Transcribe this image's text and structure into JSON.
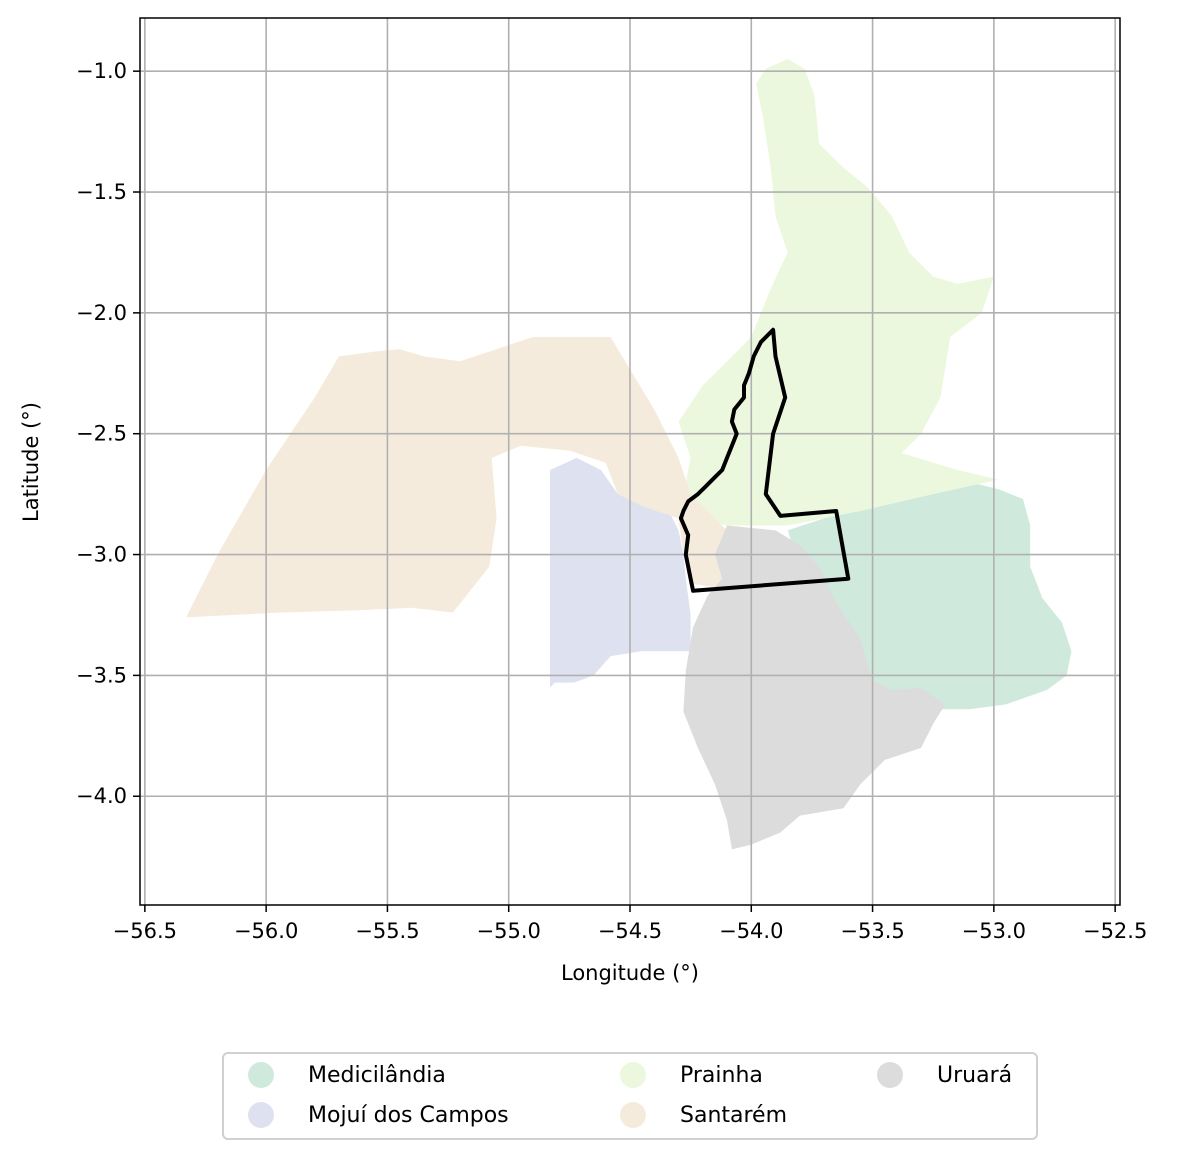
{
  "chart_data": {
    "type": "map",
    "title": "",
    "xlabel": "Longitude (°)",
    "ylabel": "Latitude (°)",
    "xlim": [
      -56.52,
      -52.48
    ],
    "ylim": [
      -4.45,
      -0.78
    ],
    "grid": true,
    "xticks": [
      -56.5,
      -56.0,
      -55.5,
      -55.0,
      -54.5,
      -54.0,
      -53.5,
      -53.0,
      -52.5
    ],
    "xtick_labels": [
      "−56.5",
      "−56.0",
      "−55.5",
      "−55.0",
      "−54.5",
      "−54.0",
      "−53.5",
      "−53.0",
      "−52.5"
    ],
    "yticks": [
      -1.0,
      -1.5,
      -2.0,
      -2.5,
      -3.0,
      -3.5,
      -4.0
    ],
    "ytick_labels": [
      "−1.0",
      "−1.5",
      "−2.0",
      "−2.5",
      "−3.0",
      "−3.5",
      "−4.0"
    ],
    "legend_position": "bottom-center, below plot",
    "regions": [
      {
        "name": "Medicilândia",
        "color": "#cfeadd",
        "polygon": [
          [
            -53.85,
            -2.9
          ],
          [
            -53.55,
            -2.8
          ],
          [
            -53.25,
            -2.75
          ],
          [
            -53.1,
            -2.7
          ],
          [
            -52.98,
            -2.73
          ],
          [
            -52.88,
            -2.77
          ],
          [
            -52.85,
            -2.88
          ],
          [
            -52.85,
            -3.05
          ],
          [
            -52.8,
            -3.18
          ],
          [
            -52.72,
            -3.28
          ],
          [
            -52.68,
            -3.4
          ],
          [
            -52.7,
            -3.5
          ],
          [
            -52.78,
            -3.56
          ],
          [
            -52.95,
            -3.62
          ],
          [
            -53.1,
            -3.64
          ],
          [
            -53.25,
            -3.64
          ],
          [
            -53.35,
            -3.62
          ],
          [
            -53.45,
            -3.56
          ],
          [
            -53.55,
            -3.52
          ],
          [
            -53.62,
            -3.44
          ],
          [
            -53.7,
            -3.35
          ],
          [
            -53.75,
            -3.18
          ],
          [
            -53.8,
            -3.05
          ]
        ]
      },
      {
        "name": "Mojuí dos Campos",
        "color": "#dee2f0",
        "polygon": [
          [
            -54.83,
            -2.65
          ],
          [
            -54.72,
            -2.6
          ],
          [
            -54.62,
            -2.65
          ],
          [
            -54.55,
            -2.75
          ],
          [
            -54.45,
            -2.78
          ],
          [
            -54.35,
            -2.8
          ],
          [
            -54.3,
            -2.9
          ],
          [
            -54.28,
            -3.0
          ],
          [
            -54.27,
            -3.1
          ],
          [
            -54.25,
            -3.25
          ],
          [
            -54.25,
            -3.4
          ],
          [
            -54.35,
            -3.4
          ],
          [
            -54.45,
            -3.4
          ],
          [
            -54.58,
            -3.42
          ],
          [
            -54.65,
            -3.5
          ],
          [
            -54.73,
            -3.53
          ],
          [
            -54.81,
            -3.53
          ],
          [
            -54.83,
            -3.55
          ]
        ]
      },
      {
        "name": "Prainha",
        "color": "#ecf8de",
        "polygon": [
          [
            -53.94,
            -0.99
          ],
          [
            -53.85,
            -0.95
          ],
          [
            -53.78,
            -0.99
          ],
          [
            -53.74,
            -1.1
          ],
          [
            -53.72,
            -1.3
          ],
          [
            -53.62,
            -1.4
          ],
          [
            -53.52,
            -1.48
          ],
          [
            -53.42,
            -1.6
          ],
          [
            -53.35,
            -1.75
          ],
          [
            -53.25,
            -1.85
          ],
          [
            -53.15,
            -1.88
          ],
          [
            -53.0,
            -1.85
          ],
          [
            -53.05,
            -2.0
          ],
          [
            -53.18,
            -2.1
          ],
          [
            -53.22,
            -2.35
          ],
          [
            -53.3,
            -2.5
          ],
          [
            -53.38,
            -2.58
          ],
          [
            -53.15,
            -2.65
          ],
          [
            -52.98,
            -2.69
          ],
          [
            -53.25,
            -2.75
          ],
          [
            -53.55,
            -2.82
          ],
          [
            -53.85,
            -2.88
          ],
          [
            -54.1,
            -2.88
          ],
          [
            -54.25,
            -2.85
          ],
          [
            -54.28,
            -2.75
          ],
          [
            -54.25,
            -2.6
          ],
          [
            -54.3,
            -2.45
          ],
          [
            -54.2,
            -2.3
          ],
          [
            -54.0,
            -2.1
          ],
          [
            -53.92,
            -1.9
          ],
          [
            -53.85,
            -1.75
          ],
          [
            -53.9,
            -1.6
          ],
          [
            -53.92,
            -1.4
          ],
          [
            -53.95,
            -1.2
          ],
          [
            -53.98,
            -1.05
          ]
        ]
      },
      {
        "name": "Santarém",
        "color": "#f5ebdd",
        "polygon": [
          [
            -56.33,
            -3.26
          ],
          [
            -55.95,
            -3.24
          ],
          [
            -55.6,
            -3.23
          ],
          [
            -55.4,
            -3.22
          ],
          [
            -55.23,
            -3.24
          ],
          [
            -55.08,
            -3.05
          ],
          [
            -55.05,
            -2.85
          ],
          [
            -55.07,
            -2.6
          ],
          [
            -54.95,
            -2.55
          ],
          [
            -54.75,
            -2.57
          ],
          [
            -54.6,
            -2.62
          ],
          [
            -54.55,
            -2.75
          ],
          [
            -54.45,
            -2.8
          ],
          [
            -54.3,
            -2.85
          ],
          [
            -54.28,
            -3.0
          ],
          [
            -54.25,
            -3.12
          ],
          [
            -54.05,
            -3.15
          ],
          [
            -54.1,
            -2.9
          ],
          [
            -54.25,
            -2.75
          ],
          [
            -54.3,
            -2.6
          ],
          [
            -54.4,
            -2.4
          ],
          [
            -54.52,
            -2.2
          ],
          [
            -54.58,
            -2.1
          ],
          [
            -54.75,
            -2.1
          ],
          [
            -54.9,
            -2.1
          ],
          [
            -55.05,
            -2.15
          ],
          [
            -55.2,
            -2.2
          ],
          [
            -55.35,
            -2.18
          ],
          [
            -55.45,
            -2.15
          ],
          [
            -55.55,
            -2.16
          ],
          [
            -55.7,
            -2.18
          ],
          [
            -55.8,
            -2.35
          ],
          [
            -56.0,
            -2.65
          ],
          [
            -56.2,
            -3.0
          ]
        ]
      },
      {
        "name": "Uruará",
        "color": "#dcdcdc",
        "polygon": [
          [
            -54.1,
            -2.88
          ],
          [
            -53.9,
            -2.9
          ],
          [
            -53.8,
            -2.96
          ],
          [
            -53.72,
            -3.05
          ],
          [
            -53.65,
            -3.2
          ],
          [
            -53.55,
            -3.35
          ],
          [
            -53.5,
            -3.52
          ],
          [
            -53.42,
            -3.56
          ],
          [
            -53.3,
            -3.55
          ],
          [
            -53.2,
            -3.62
          ],
          [
            -53.25,
            -3.7
          ],
          [
            -53.3,
            -3.8
          ],
          [
            -53.45,
            -3.85
          ],
          [
            -53.55,
            -3.95
          ],
          [
            -53.62,
            -4.05
          ],
          [
            -53.8,
            -4.08
          ],
          [
            -53.88,
            -4.15
          ],
          [
            -54.0,
            -4.2
          ],
          [
            -54.08,
            -4.22
          ],
          [
            -54.1,
            -4.1
          ],
          [
            -54.15,
            -3.95
          ],
          [
            -54.22,
            -3.8
          ],
          [
            -54.28,
            -3.65
          ],
          [
            -54.27,
            -3.48
          ],
          [
            -54.24,
            -3.3
          ],
          [
            -54.18,
            -3.17
          ],
          [
            -54.12,
            -3.1
          ],
          [
            -54.15,
            -3.0
          ]
        ]
      }
    ],
    "outline": {
      "color": "#000000",
      "polygon": [
        [
          -53.91,
          -2.07
        ],
        [
          -53.9,
          -2.18
        ],
        [
          -53.86,
          -2.35
        ],
        [
          -53.91,
          -2.5
        ],
        [
          -53.94,
          -2.75
        ],
        [
          -53.88,
          -2.84
        ],
        [
          -53.65,
          -2.82
        ],
        [
          -53.6,
          -3.1
        ],
        [
          -54.24,
          -3.15
        ],
        [
          -54.25,
          -3.1
        ],
        [
          -54.27,
          -3.0
        ],
        [
          -54.26,
          -2.92
        ],
        [
          -54.29,
          -2.85
        ],
        [
          -54.28,
          -2.82
        ],
        [
          -54.26,
          -2.78
        ],
        [
          -54.22,
          -2.75
        ],
        [
          -54.19,
          -2.72
        ],
        [
          -54.15,
          -2.68
        ],
        [
          -54.12,
          -2.65
        ],
        [
          -54.1,
          -2.6
        ],
        [
          -54.08,
          -2.55
        ],
        [
          -54.06,
          -2.5
        ],
        [
          -54.08,
          -2.45
        ],
        [
          -54.07,
          -2.4
        ],
        [
          -54.03,
          -2.35
        ],
        [
          -54.03,
          -2.3
        ],
        [
          -54.01,
          -2.25
        ],
        [
          -53.99,
          -2.18
        ],
        [
          -53.96,
          -2.12
        ]
      ]
    }
  },
  "legend": {
    "items": [
      {
        "label": "Medicilândia",
        "color": "#cfeadd"
      },
      {
        "label": "Prainha",
        "color": "#ecf8de"
      },
      {
        "label": "Uruará",
        "color": "#dcdcdc"
      },
      {
        "label": "Mojuí dos Campos",
        "color": "#dee2f0"
      },
      {
        "label": "Santarém",
        "color": "#f5ebdd"
      }
    ]
  }
}
